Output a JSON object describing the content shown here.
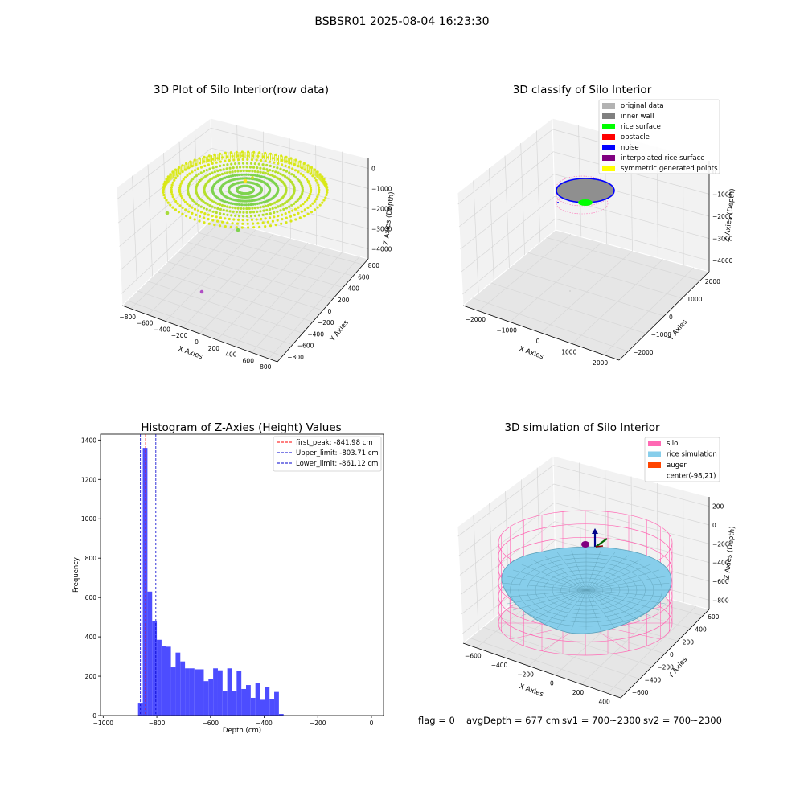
{
  "figure": {
    "suptitle": "BSBSR01 2025-08-04 16:23:30",
    "footer": {
      "flag": "flag = 0",
      "avg_depth": "avgDepth = 677 cm",
      "sv1": "sv1 = 700~2300",
      "sv2": "sv2 = 700~2300"
    }
  },
  "chart_data": [
    {
      "type": "scatter",
      "title": "3D Plot of Silo Interior(row data)",
      "xlabel": "X Axies",
      "ylabel": "Y Axies",
      "zlabel": "Z Axies (Depth)",
      "x_ticks": [
        "−800",
        "−600",
        "−400",
        "−200",
        "0",
        "200",
        "400",
        "600",
        "800"
      ],
      "y_ticks": [
        "−800",
        "−600",
        "−400",
        "−200",
        "0",
        "200",
        "400",
        "600",
        "800"
      ],
      "z_ticks": [
        "0",
        "−1000",
        "−2000",
        "−3000",
        "−4000"
      ],
      "xlim": [
        -900,
        900
      ],
      "ylim": [
        -900,
        900
      ],
      "zlim": [
        -4500,
        300
      ],
      "colors": {
        "center": "#7fd34e",
        "edge": "#d9e817",
        "outlier": "#b04fc4"
      },
      "points_desc": "dense disc of measured points, radius ~750, depth ~ -800",
      "highlight_points": [
        {
          "x": 100,
          "y": -150,
          "z": -900,
          "color": "#ffe01a"
        },
        {
          "x": -700,
          "y": 500,
          "z": -2100,
          "color": "#a8dc3c"
        },
        {
          "x": 150,
          "y": 300,
          "z": -2600,
          "color": "#7fd34e"
        },
        {
          "x": -400,
          "y": 100,
          "z": -4200,
          "color": "#b04fc4"
        }
      ]
    },
    {
      "type": "scatter",
      "title": "3D classify of Silo Interior",
      "xlabel": "X Axies",
      "ylabel": "Y Axies",
      "zlabel": "Z Axies (Depth)",
      "x_ticks": [
        "−2000",
        "−1000",
        "0",
        "1000",
        "2000"
      ],
      "y_ticks": [
        "−2000",
        "−1000",
        "0",
        "1000",
        "2000"
      ],
      "z_ticks": [
        "0",
        "−1000",
        "−2000",
        "−3000",
        "−4000"
      ],
      "legend": [
        {
          "label": "original data",
          "color": "#b3b3b3"
        },
        {
          "label": "inner wall",
          "color": "#808080"
        },
        {
          "label": "rice surface",
          "color": "#00ff00"
        },
        {
          "label": "obstacle",
          "color": "#ff0000"
        },
        {
          "label": "noise",
          "color": "#0000ff"
        },
        {
          "label": "interpolated rice surface",
          "color": "#800080"
        },
        {
          "label": "symmetric generated points",
          "color": "#ffff00"
        }
      ]
    },
    {
      "type": "bar",
      "title": "Histogram of Z-Axies (Height) Values",
      "xlabel": "Depth (cm)",
      "ylabel": "Frequency",
      "xlim": [
        -1010,
        45
      ],
      "ylim": [
        0,
        1430
      ],
      "x_ticks": [
        -1000,
        -800,
        -600,
        -400,
        -200,
        0
      ],
      "x_tick_labels": [
        "−1000",
        "−800",
        "−600",
        "−400",
        "−200",
        "0"
      ],
      "y_ticks": [
        0,
        200,
        400,
        600,
        800,
        1000,
        1200,
        1400
      ],
      "bin_start": -870,
      "bin_width": 17.5,
      "values": [
        65,
        1360,
        630,
        480,
        385,
        355,
        350,
        245,
        320,
        275,
        240,
        240,
        235,
        235,
        175,
        185,
        240,
        230,
        125,
        240,
        125,
        225,
        135,
        155,
        90,
        165,
        80,
        145,
        85,
        120,
        8
      ],
      "bar_color": "#4d4dff",
      "legend": [
        {
          "label": "first_peak: -841.98 cm",
          "value": -841.98,
          "color": "#ff0000"
        },
        {
          "label": "Upper_limit: -803.71 cm",
          "value": -803.71,
          "color": "#0000cc"
        },
        {
          "label": "Lower_limit: -861.12 cm",
          "value": -861.12,
          "color": "#0000cc"
        }
      ],
      "legend_position": "top-right"
    },
    {
      "type": "scatter",
      "title": "3D simulation of Silo Interior",
      "xlabel": "X Axies",
      "ylabel": "Y Axies",
      "zlabel": "Z Axies (Depth)",
      "x_ticks": [
        "−600",
        "−400",
        "−200",
        "0",
        "200",
        "400"
      ],
      "y_ticks": [
        "−600",
        "−400",
        "−200",
        "0",
        "200",
        "400",
        "600"
      ],
      "z_ticks": [
        "200",
        "0",
        "−200",
        "−400",
        "−600",
        "−800"
      ],
      "legend": [
        {
          "label": "silo",
          "color": "#ff69b4"
        },
        {
          "label": "rice simulation",
          "color": "#87ceeb"
        },
        {
          "label": "auger",
          "color": "#ff4500"
        },
        {
          "label": "center(-98,21)",
          "color": ""
        }
      ]
    }
  ]
}
